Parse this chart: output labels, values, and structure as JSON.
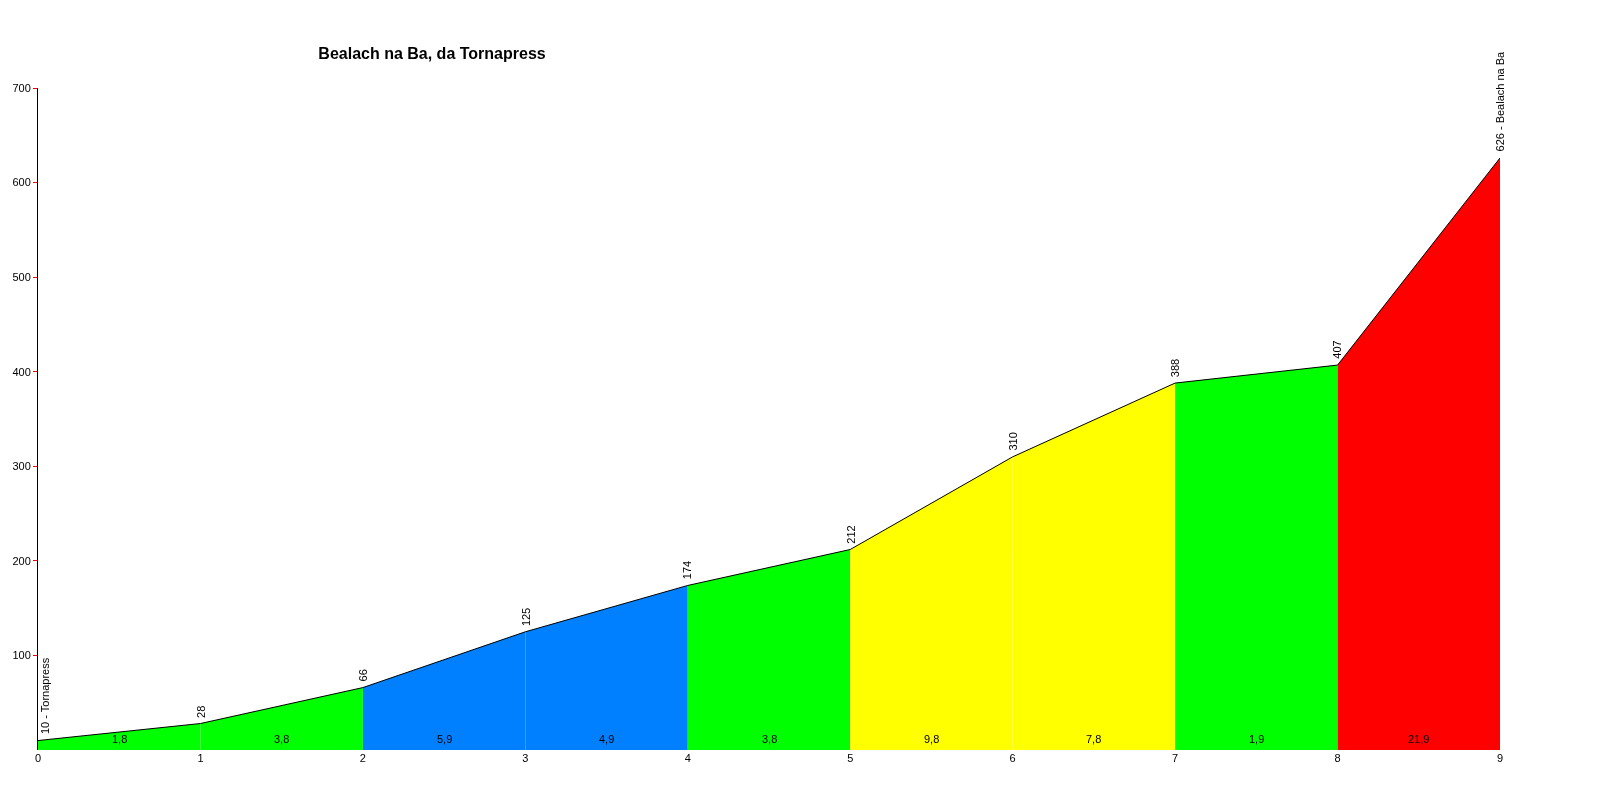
{
  "chart_data": {
    "type": "area",
    "title": "Bealach na Ba, da Tornapress",
    "xlim": [
      0,
      9
    ],
    "xticks": [
      0,
      1,
      2,
      3,
      4,
      5,
      6,
      7,
      8,
      9
    ],
    "ylim": [
      0,
      700
    ],
    "yticks": [
      100,
      200,
      300,
      400,
      500,
      600,
      700
    ],
    "grid": false,
    "marker": "none",
    "series": [
      {
        "color": "#00ff00",
        "x": [
          0,
          1
        ],
        "values": [
          10,
          28
        ]
      },
      {
        "color": "#00ff00",
        "x": [
          1,
          2
        ],
        "values": [
          28,
          66
        ]
      },
      {
        "color": "#0080ff",
        "x": [
          2,
          3
        ],
        "values": [
          66,
          125
        ]
      },
      {
        "color": "#0080ff",
        "x": [
          3,
          4
        ],
        "values": [
          125,
          174
        ]
      },
      {
        "color": "#00ff00",
        "x": [
          4,
          5
        ],
        "values": [
          174,
          212
        ]
      },
      {
        "color": "#ffff00",
        "x": [
          5,
          6
        ],
        "values": [
          212,
          310
        ]
      },
      {
        "color": "#ffff00",
        "x": [
          6,
          7
        ],
        "values": [
          310,
          388
        ]
      },
      {
        "color": "#00ff00",
        "x": [
          7,
          8
        ],
        "values": [
          388,
          407
        ]
      },
      {
        "color": "#ff0000",
        "x": [
          8,
          9
        ],
        "values": [
          407,
          626
        ]
      },
      {
        "type": "line",
        "color": "#000000",
        "line_style": "solid",
        "x": [
          0,
          1,
          2,
          3,
          4,
          5,
          6,
          7,
          8,
          9
        ],
        "values": [
          10,
          28,
          66,
          125,
          174,
          212,
          310,
          388,
          407,
          626
        ],
        "value_labels": [
          "10 - Tornapress",
          "28",
          "66",
          "125",
          "174",
          "212",
          "310",
          "388",
          "407",
          "626 - Bealach na Ba"
        ]
      }
    ],
    "annotations": [
      "1,8",
      "3,8",
      "5,9",
      "4,9",
      "3,8",
      "9,8",
      "7,8",
      "1,9",
      "21,9"
    ]
  }
}
